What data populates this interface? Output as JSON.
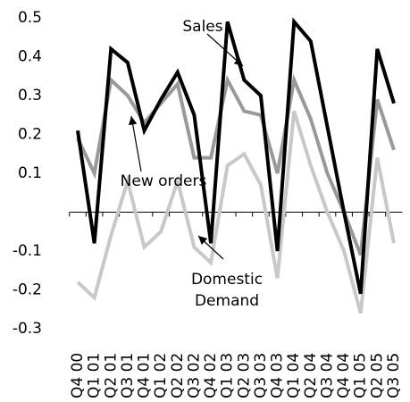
{
  "chart_data": {
    "type": "line",
    "categories": [
      "Q4 00",
      "Q1 01",
      "Q2 01",
      "Q3 01",
      "Q4 01",
      "Q1 02",
      "Q2 02",
      "Q3 02",
      "Q4 02",
      "Q1 03",
      "Q2 03",
      "Q3 03",
      "Q4 03",
      "Q1 04",
      "Q2 04",
      "Q3 04",
      "Q4 04",
      "Q1 05",
      "Q2 05",
      "Q3 05"
    ],
    "series": [
      {
        "name": "Domestic Demand",
        "color": "#c8c8c8",
        "values": [
          -0.18,
          -0.22,
          -0.06,
          0.08,
          -0.09,
          -0.05,
          0.08,
          -0.09,
          -0.13,
          0.12,
          0.15,
          0.07,
          -0.17,
          0.26,
          0.12,
          0.0,
          -0.1,
          -0.26,
          0.14,
          -0.08
        ]
      },
      {
        "name": "New orders",
        "color": "#999999",
        "values": [
          0.19,
          0.1,
          0.34,
          0.3,
          0.23,
          0.28,
          0.33,
          0.14,
          0.14,
          0.34,
          0.26,
          0.25,
          0.1,
          0.34,
          0.24,
          0.1,
          0.0,
          -0.11,
          0.29,
          0.16
        ]
      },
      {
        "name": "Sales",
        "color": "#000000",
        "values": [
          0.21,
          -0.08,
          0.42,
          0.385,
          0.21,
          0.29,
          0.36,
          0.25,
          -0.08,
          0.49,
          0.34,
          0.3,
          -0.1,
          0.49,
          0.44,
          0.22,
          0.0,
          -0.21,
          0.42,
          0.28
        ]
      }
    ],
    "ylim": [
      -0.3,
      0.5
    ],
    "yticks": [
      0.5,
      0.4,
      0.3,
      0.2,
      0.1,
      -0.1,
      -0.2,
      -0.3
    ]
  }
}
